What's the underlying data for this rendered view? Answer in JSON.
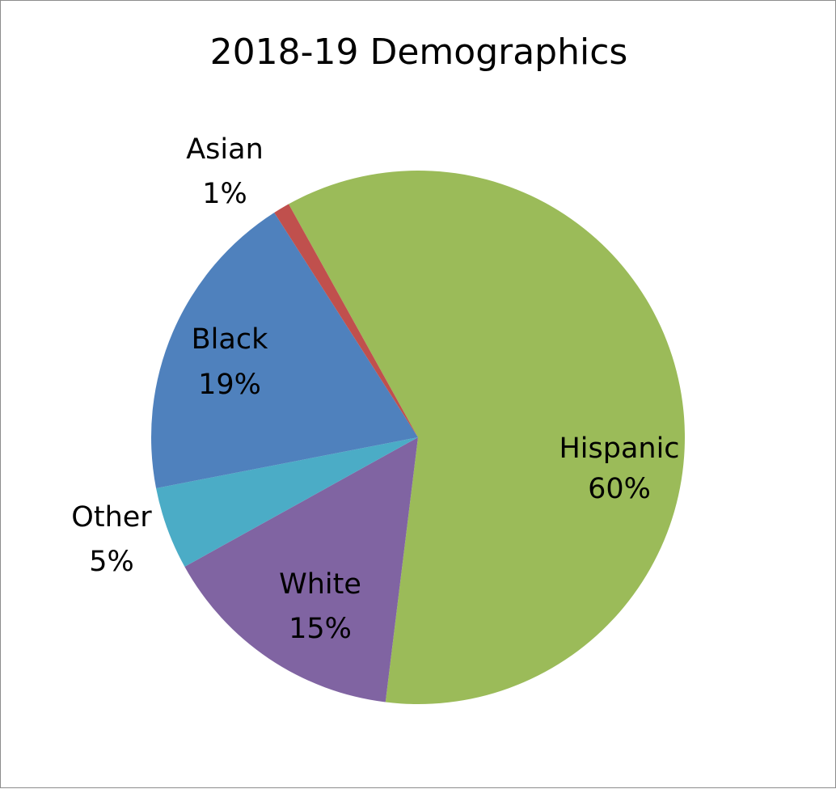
{
  "chart_data": {
    "type": "pie",
    "title": "2018-19 Demographics",
    "slices": [
      {
        "label": "Hispanic",
        "value": 60,
        "value_label": "60%",
        "color": "#9bbb59"
      },
      {
        "label": "White",
        "value": 15,
        "value_label": "15%",
        "color": "#8064a2"
      },
      {
        "label": "Other",
        "value": 5,
        "value_label": "5%",
        "color": "#4bacc6"
      },
      {
        "label": "Black",
        "value": 19,
        "value_label": "19%",
        "color": "#4f81bd"
      },
      {
        "label": "Asian",
        "value": 1,
        "value_label": "1%",
        "color": "#c0504d"
      }
    ],
    "start_angle_deg": 331,
    "direction": "clockwise"
  }
}
